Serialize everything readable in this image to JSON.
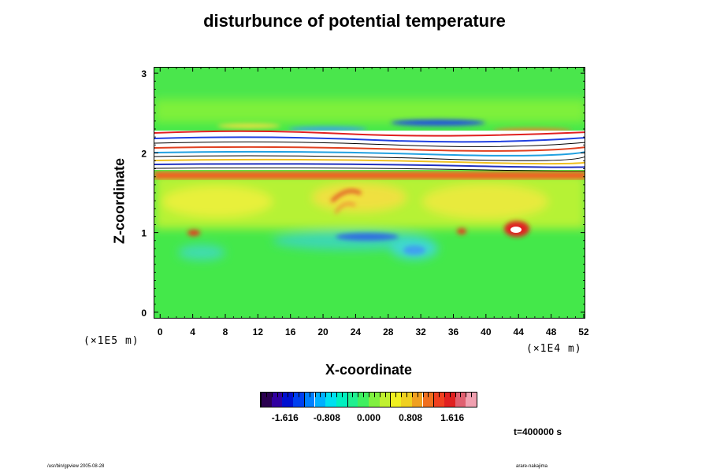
{
  "chart_data": {
    "type": "heatmap",
    "title": "disturbunce of potential temperature",
    "xlabel": "X-coordinate",
    "ylabel": "Z-coordinate",
    "x_scale_note": "(×1E4 m)",
    "y_scale_note": "(×1E5 m)",
    "x_ticks": [
      0,
      4,
      8,
      12,
      16,
      20,
      24,
      28,
      32,
      36,
      40,
      44,
      48,
      52
    ],
    "y_ticks": [
      0,
      1,
      2,
      3
    ],
    "xlim": [
      -0.8,
      52.2
    ],
    "ylim": [
      -0.08,
      3.08
    ],
    "colorbar": {
      "ticks": [
        "-1.616",
        "-0.808",
        "0.000",
        "0.808",
        "1.616"
      ],
      "range": [
        -2.1,
        2.1
      ],
      "colormap": "rainbow"
    },
    "time_label": "t=400000 s"
  },
  "footer": {
    "left": "/usr/bin/gpview 2005-08-28",
    "right": "arare-nakajima"
  }
}
